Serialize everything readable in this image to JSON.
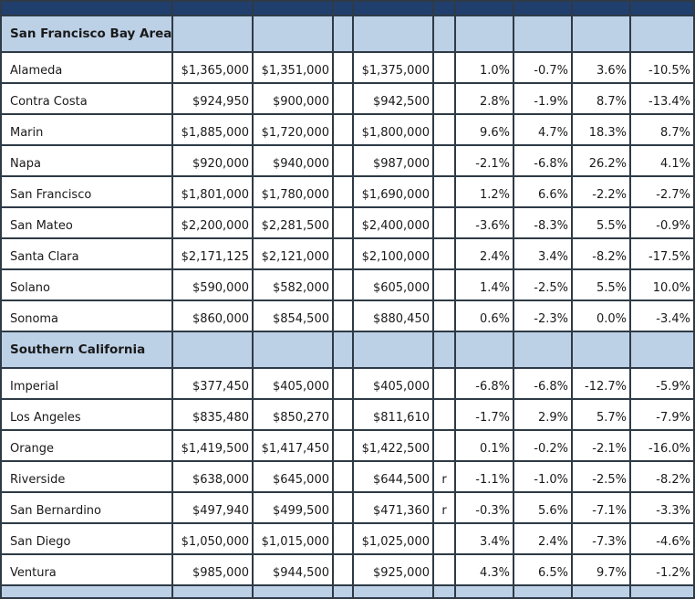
{
  "regions": [
    {
      "title": "San Francisco Bay Area",
      "rows": [
        {
          "county": "Alameda",
          "a": "$1,365,000",
          "b": "$1,351,000",
          "c": "$1,375,000",
          "flag": "",
          "d": "1.0%",
          "e": "-0.7%",
          "f": "3.6%",
          "g": "-10.5%"
        },
        {
          "county": "Contra Costa",
          "a": "$924,950",
          "b": "$900,000",
          "c": "$942,500",
          "flag": "",
          "d": "2.8%",
          "e": "-1.9%",
          "f": "8.7%",
          "g": "-13.4%"
        },
        {
          "county": "Marin",
          "a": "$1,885,000",
          "b": "$1,720,000",
          "c": "$1,800,000",
          "flag": "",
          "d": "9.6%",
          "e": "4.7%",
          "f": "18.3%",
          "g": "8.7%"
        },
        {
          "county": "Napa",
          "a": "$920,000",
          "b": "$940,000",
          "c": "$987,000",
          "flag": "",
          "d": "-2.1%",
          "e": "-6.8%",
          "f": "26.2%",
          "g": "4.1%"
        },
        {
          "county": "San Francisco",
          "a": "$1,801,000",
          "b": "$1,780,000",
          "c": "$1,690,000",
          "flag": "",
          "d": "1.2%",
          "e": "6.6%",
          "f": "-2.2%",
          "g": "-2.7%"
        },
        {
          "county": "San Mateo",
          "a": "$2,200,000",
          "b": "$2,281,500",
          "c": "$2,400,000",
          "flag": "",
          "d": "-3.6%",
          "e": "-8.3%",
          "f": "5.5%",
          "g": "-0.9%"
        },
        {
          "county": "Santa Clara",
          "a": "$2,171,125",
          "b": "$2,121,000",
          "c": "$2,100,000",
          "flag": "",
          "d": "2.4%",
          "e": "3.4%",
          "f": "-8.2%",
          "g": "-17.5%"
        },
        {
          "county": "Solano",
          "a": "$590,000",
          "b": "$582,000",
          "c": "$605,000",
          "flag": "",
          "d": "1.4%",
          "e": "-2.5%",
          "f": "5.5%",
          "g": "10.0%"
        },
        {
          "county": "Sonoma",
          "a": "$860,000",
          "b": "$854,500",
          "c": "$880,450",
          "flag": "",
          "d": "0.6%",
          "e": "-2.3%",
          "f": "0.0%",
          "g": "-3.4%"
        }
      ]
    },
    {
      "title": "Southern California",
      "rows": [
        {
          "county": "Imperial",
          "a": "$377,450",
          "b": "$405,000",
          "c": "$405,000",
          "flag": "",
          "d": "-6.8%",
          "e": "-6.8%",
          "f": "-12.7%",
          "g": "-5.9%"
        },
        {
          "county": "Los Angeles",
          "a": "$835,480",
          "b": "$850,270",
          "c": "$811,610",
          "flag": "",
          "d": "-1.7%",
          "e": "2.9%",
          "f": "5.7%",
          "g": "-7.9%"
        },
        {
          "county": "Orange",
          "a": "$1,419,500",
          "b": "$1,417,450",
          "c": "$1,422,500",
          "flag": "",
          "d": "0.1%",
          "e": "-0.2%",
          "f": "-2.1%",
          "g": "-16.0%"
        },
        {
          "county": "Riverside",
          "a": "$638,000",
          "b": "$645,000",
          "c": "$644,500",
          "flag": "r",
          "d": "-1.1%",
          "e": "-1.0%",
          "f": "-2.5%",
          "g": "-8.2%"
        },
        {
          "county": "San Bernardino",
          "a": "$497,940",
          "b": "$499,500",
          "c": "$471,360",
          "flag": "r",
          "d": "-0.3%",
          "e": "5.6%",
          "f": "-7.1%",
          "g": "-3.3%"
        },
        {
          "county": "San Diego",
          "a": "$1,050,000",
          "b": "$1,015,000",
          "c": "$1,025,000",
          "flag": "",
          "d": "3.4%",
          "e": "2.4%",
          "f": "-7.3%",
          "g": "-4.6%"
        },
        {
          "county": "Ventura",
          "a": "$985,000",
          "b": "$944,500",
          "c": "$925,000",
          "flag": "",
          "d": "4.3%",
          "e": "6.5%",
          "f": "9.7%",
          "g": "-1.2%"
        }
      ]
    }
  ],
  "colors": {
    "header_band": "#213f6d",
    "region_band": "#bcd0e6",
    "grid_line": "#2e3a46"
  }
}
